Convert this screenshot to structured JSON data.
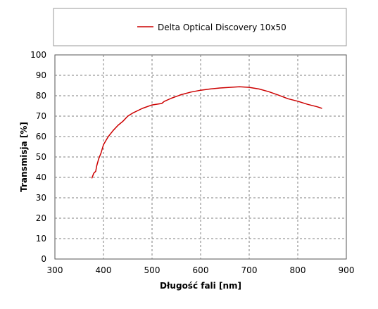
{
  "chart_data": {
    "type": "line",
    "xlabel": "Długość fali [nm]",
    "ylabel": "Transmisja [%]",
    "xlim": [
      300,
      900
    ],
    "ylim": [
      0,
      100
    ],
    "xticks": [
      300,
      400,
      500,
      600,
      700,
      800,
      900
    ],
    "yticks": [
      0,
      10,
      20,
      30,
      40,
      50,
      60,
      70,
      80,
      90,
      100
    ],
    "grid": true,
    "legend": "top",
    "series": [
      {
        "name": "Delta Optical Discovery 10x50",
        "color": "#cc0000",
        "x": [
          376,
          380,
          384,
          386,
          390,
          395,
          400,
          405,
          410,
          420,
          430,
          440,
          450,
          460,
          480,
          500,
          520,
          525,
          540,
          560,
          580,
          600,
          620,
          640,
          660,
          680,
          700,
          720,
          740,
          760,
          780,
          800,
          820,
          840,
          850
        ],
        "y": [
          39.5,
          42,
          43,
          45.5,
          49,
          52,
          56,
          58,
          60,
          63,
          65.5,
          67.5,
          70,
          71.5,
          73.8,
          75.5,
          76.2,
          77.2,
          78.8,
          80.5,
          81.8,
          82.7,
          83.3,
          83.8,
          84.1,
          84.4,
          84.1,
          83.3,
          82.0,
          80.3,
          78.5,
          77.3,
          75.8,
          74.6,
          73.8
        ]
      }
    ]
  }
}
